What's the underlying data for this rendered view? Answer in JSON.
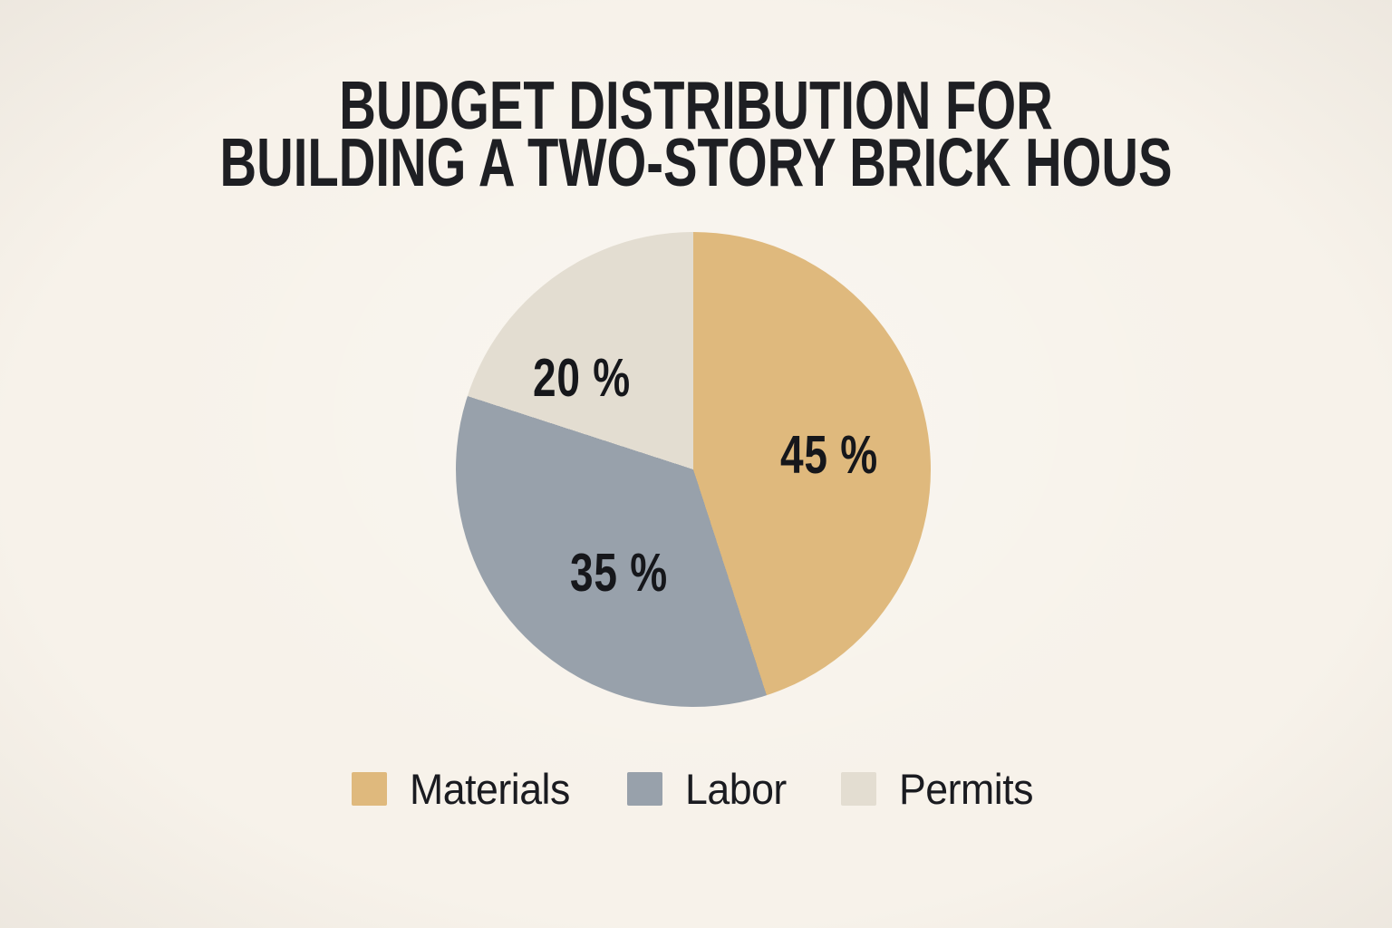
{
  "page": {
    "background": "#F7F2EA",
    "text_color": "#1E1F23"
  },
  "title": {
    "line1": "BUDGET DISTRIBUTION FOR",
    "line2": "BUILDING A TWO-STORY BRICK HOUS"
  },
  "chart_data": {
    "type": "pie",
    "title": "BUDGET DISTRIBUTION FOR BUILDING A TWO-STORY BRICK HOUS",
    "direction": "clockwise",
    "start_angle_deg": 0,
    "legend_position": "bottom",
    "slices": [
      {
        "label": "Materials",
        "value": 45,
        "percent_display": "45 %",
        "color": "#DFB97D"
      },
      {
        "label": "Labor",
        "value": 35,
        "percent_display": "35 %",
        "color": "#98A1AB"
      },
      {
        "label": "Permits",
        "value": 20,
        "percent_display": "20 %",
        "color": "#E3DDD1"
      }
    ]
  }
}
